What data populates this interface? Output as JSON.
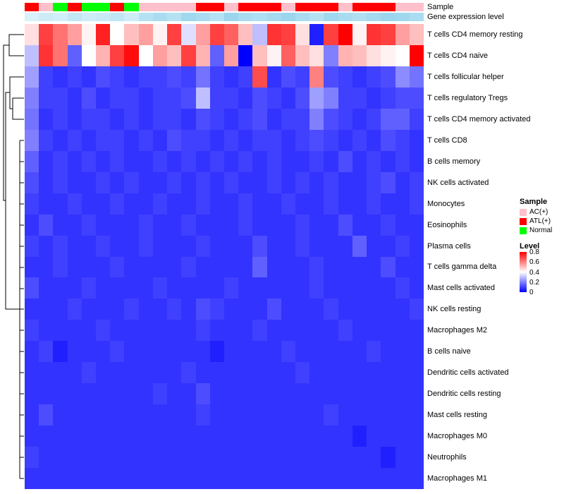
{
  "annotation": {
    "sample_label": "Sample",
    "expression_label": "Gene expression level"
  },
  "legend": {
    "sample_title": "Sample",
    "sample_items": [
      {
        "label": "AC(+)",
        "color": "#FFC0CB"
      },
      {
        "label": "ATL(+)",
        "color": "#FF0000"
      },
      {
        "label": "Normal",
        "color": "#00FF00"
      }
    ],
    "level_title": "Level",
    "level_ticks": [
      "0.8",
      "0.6",
      "0.4",
      "0.2",
      "0"
    ],
    "level_gradient_top": "#FF0000",
    "level_gradient_mid": "#FFFFFF",
    "level_gradient_bottom": "#0000FF"
  },
  "chart_data": {
    "type": "heatmap",
    "title": "",
    "columns": 28,
    "value_range": [
      0,
      0.8
    ],
    "colormap": {
      "low": "#0000FF",
      "mid": "#FFFFFF",
      "high": "#FF0000",
      "mid_value": 0.4
    },
    "legend_position": "right",
    "rows": [
      "T cells CD4 memory resting",
      "T cells CD4 naive",
      "T cells follicular helper",
      "T cells regulatory Tregs",
      "T cells CD4 memory activated",
      "T cells CD8",
      "B cells memory",
      "NK cells activated",
      "Monocytes",
      "Eosinophils",
      "Plasma cells",
      "T cells gamma delta",
      "Mast cells activated",
      "NK cells resting",
      "Macrophages M2",
      "B cells naive",
      "Dendritic cells activated",
      "Dendritic cells resting",
      "Mast cells resting",
      "Macrophages M0",
      "Neutrophils",
      "Macrophages M1"
    ],
    "sample_groups": [
      "ATL(+)",
      "AC(+)",
      "Normal",
      "ATL(+)",
      "Normal",
      "Normal",
      "ATL(+)",
      "Normal",
      "AC(+)",
      "AC(+)",
      "AC(+)",
      "AC(+)",
      "ATL(+)",
      "ATL(+)",
      "AC(+)",
      "ATL(+)",
      "ATL(+)",
      "ATL(+)",
      "AC(+)",
      "ATL(+)",
      "ATL(+)",
      "ATL(+)",
      "AC(+)",
      "ATL(+)",
      "ATL(+)",
      "ATL(+)",
      "AC(+)",
      "AC(+)"
    ],
    "expression_colors": [
      "#d8f1fa",
      "#cdecf8",
      "#d2eef9",
      "#c2e7f6",
      "#cdecf8",
      "#c8eaf7",
      "#bfe6f5",
      "#cdecf8",
      "#b5e2f3",
      "#aadcf1",
      "#b5e2f3",
      "#a0d8ef",
      "#aadcf1",
      "#b5e2f3",
      "#9bd5ee",
      "#aadcf1",
      "#b0dff2",
      "#a5daf0",
      "#9bd5ee",
      "#aadcf1",
      "#b5e2f3",
      "#a0d8ef",
      "#aadcf1",
      "#b0dff2",
      "#a5daf0",
      "#9bd5ee",
      "#a0d8ef",
      "#aadcf1"
    ],
    "matrix": [
      [
        0.45,
        0.7,
        0.62,
        0.55,
        0.42,
        0.75,
        0.4,
        0.5,
        0.55,
        0.42,
        0.7,
        0.35,
        0.55,
        0.7,
        0.65,
        0.5,
        0.3,
        0.72,
        0.7,
        0.45,
        0.05,
        0.7,
        0.8,
        0.42,
        0.72,
        0.7,
        0.55,
        0.5
      ],
      [
        0.3,
        0.72,
        0.62,
        0.15,
        0.4,
        0.52,
        0.7,
        0.78,
        0.4,
        0.55,
        0.5,
        0.7,
        0.52,
        0.15,
        0.55,
        0.0,
        0.5,
        0.42,
        0.65,
        0.5,
        0.45,
        0.2,
        0.52,
        0.5,
        0.45,
        0.42,
        0.4,
        0.8
      ],
      [
        0.25,
        0.1,
        0.08,
        0.1,
        0.08,
        0.12,
        0.1,
        0.08,
        0.1,
        0.1,
        0.12,
        0.1,
        0.18,
        0.1,
        0.08,
        0.1,
        0.68,
        0.08,
        0.12,
        0.1,
        0.6,
        0.12,
        0.1,
        0.08,
        0.1,
        0.12,
        0.22,
        0.18
      ],
      [
        0.2,
        0.1,
        0.1,
        0.08,
        0.12,
        0.08,
        0.1,
        0.1,
        0.08,
        0.1,
        0.1,
        0.12,
        0.3,
        0.1,
        0.1,
        0.08,
        0.12,
        0.1,
        0.08,
        0.12,
        0.25,
        0.2,
        0.1,
        0.1,
        0.08,
        0.1,
        0.12,
        0.12
      ],
      [
        0.18,
        0.08,
        0.1,
        0.08,
        0.1,
        0.1,
        0.08,
        0.1,
        0.08,
        0.1,
        0.1,
        0.08,
        0.12,
        0.1,
        0.08,
        0.1,
        0.12,
        0.08,
        0.1,
        0.1,
        0.2,
        0.12,
        0.1,
        0.08,
        0.1,
        0.15,
        0.15,
        0.1
      ],
      [
        0.2,
        0.1,
        0.08,
        0.1,
        0.08,
        0.1,
        0.1,
        0.08,
        0.1,
        0.08,
        0.12,
        0.1,
        0.1,
        0.08,
        0.1,
        0.08,
        0.1,
        0.1,
        0.08,
        0.1,
        0.12,
        0.1,
        0.08,
        0.1,
        0.08,
        0.12,
        0.1,
        0.08
      ],
      [
        0.15,
        0.08,
        0.1,
        0.08,
        0.1,
        0.08,
        0.1,
        0.08,
        0.08,
        0.1,
        0.08,
        0.1,
        0.08,
        0.1,
        0.08,
        0.1,
        0.08,
        0.1,
        0.08,
        0.08,
        0.1,
        0.08,
        0.12,
        0.08,
        0.1,
        0.08,
        0.1,
        0.08
      ],
      [
        0.12,
        0.08,
        0.1,
        0.08,
        0.08,
        0.1,
        0.08,
        0.1,
        0.08,
        0.08,
        0.1,
        0.08,
        0.1,
        0.08,
        0.1,
        0.08,
        0.08,
        0.1,
        0.08,
        0.1,
        0.08,
        0.1,
        0.08,
        0.08,
        0.1,
        0.12,
        0.08,
        0.1
      ],
      [
        0.1,
        0.08,
        0.08,
        0.1,
        0.08,
        0.08,
        0.1,
        0.08,
        0.08,
        0.1,
        0.08,
        0.08,
        0.1,
        0.08,
        0.08,
        0.1,
        0.08,
        0.08,
        0.1,
        0.08,
        0.08,
        0.1,
        0.08,
        0.08,
        0.1,
        0.08,
        0.08,
        0.1
      ],
      [
        0.08,
        0.12,
        0.08,
        0.08,
        0.1,
        0.08,
        0.08,
        0.08,
        0.1,
        0.08,
        0.08,
        0.1,
        0.08,
        0.08,
        0.08,
        0.1,
        0.08,
        0.08,
        0.08,
        0.1,
        0.08,
        0.08,
        0.12,
        0.08,
        0.08,
        0.1,
        0.08,
        0.08
      ],
      [
        0.1,
        0.08,
        0.1,
        0.08,
        0.08,
        0.1,
        0.08,
        0.08,
        0.1,
        0.08,
        0.08,
        0.08,
        0.1,
        0.08,
        0.08,
        0.08,
        0.12,
        0.08,
        0.08,
        0.1,
        0.08,
        0.08,
        0.08,
        0.15,
        0.08,
        0.08,
        0.1,
        0.08
      ],
      [
        0.08,
        0.08,
        0.1,
        0.08,
        0.08,
        0.08,
        0.1,
        0.08,
        0.08,
        0.08,
        0.08,
        0.1,
        0.08,
        0.08,
        0.08,
        0.08,
        0.15,
        0.08,
        0.08,
        0.08,
        0.1,
        0.08,
        0.08,
        0.08,
        0.08,
        0.12,
        0.08,
        0.08
      ],
      [
        0.12,
        0.08,
        0.08,
        0.08,
        0.1,
        0.08,
        0.08,
        0.08,
        0.08,
        0.1,
        0.08,
        0.08,
        0.08,
        0.08,
        0.1,
        0.08,
        0.08,
        0.08,
        0.08,
        0.08,
        0.1,
        0.08,
        0.08,
        0.08,
        0.08,
        0.08,
        0.1,
        0.08
      ],
      [
        0.08,
        0.08,
        0.08,
        0.1,
        0.08,
        0.08,
        0.08,
        0.1,
        0.08,
        0.08,
        0.1,
        0.08,
        0.12,
        0.1,
        0.08,
        0.08,
        0.08,
        0.12,
        0.08,
        0.08,
        0.08,
        0.1,
        0.08,
        0.08,
        0.08,
        0.08,
        0.08,
        0.1
      ],
      [
        0.1,
        0.08,
        0.08,
        0.08,
        0.08,
        0.1,
        0.08,
        0.08,
        0.08,
        0.08,
        0.08,
        0.08,
        0.1,
        0.08,
        0.08,
        0.08,
        0.1,
        0.08,
        0.08,
        0.08,
        0.08,
        0.08,
        0.1,
        0.08,
        0.08,
        0.08,
        0.08,
        0.08
      ],
      [
        0.08,
        0.1,
        0.05,
        0.08,
        0.08,
        0.08,
        0.1,
        0.08,
        0.08,
        0.08,
        0.08,
        0.08,
        0.08,
        0.05,
        0.08,
        0.08,
        0.08,
        0.08,
        0.1,
        0.08,
        0.08,
        0.08,
        0.08,
        0.08,
        0.1,
        0.08,
        0.08,
        0.08
      ],
      [
        0.08,
        0.08,
        0.08,
        0.08,
        0.1,
        0.08,
        0.08,
        0.08,
        0.08,
        0.08,
        0.08,
        0.1,
        0.08,
        0.08,
        0.08,
        0.08,
        0.08,
        0.08,
        0.08,
        0.1,
        0.08,
        0.08,
        0.08,
        0.08,
        0.08,
        0.08,
        0.08,
        0.08
      ],
      [
        0.08,
        0.08,
        0.08,
        0.08,
        0.08,
        0.08,
        0.08,
        0.08,
        0.08,
        0.1,
        0.08,
        0.08,
        0.12,
        0.08,
        0.08,
        0.08,
        0.08,
        0.08,
        0.08,
        0.08,
        0.08,
        0.08,
        0.08,
        0.08,
        0.08,
        0.08,
        0.08,
        0.08
      ],
      [
        0.08,
        0.12,
        0.08,
        0.08,
        0.08,
        0.08,
        0.08,
        0.08,
        0.08,
        0.08,
        0.08,
        0.08,
        0.1,
        0.08,
        0.08,
        0.08,
        0.08,
        0.08,
        0.08,
        0.08,
        0.08,
        0.1,
        0.08,
        0.08,
        0.08,
        0.08,
        0.08,
        0.08
      ],
      [
        0.08,
        0.08,
        0.08,
        0.08,
        0.08,
        0.08,
        0.08,
        0.08,
        0.08,
        0.08,
        0.08,
        0.08,
        0.08,
        0.08,
        0.08,
        0.08,
        0.08,
        0.08,
        0.08,
        0.08,
        0.08,
        0.08,
        0.08,
        0.05,
        0.08,
        0.08,
        0.08,
        0.08
      ],
      [
        0.1,
        0.08,
        0.08,
        0.08,
        0.08,
        0.08,
        0.08,
        0.08,
        0.08,
        0.08,
        0.08,
        0.08,
        0.08,
        0.08,
        0.08,
        0.08,
        0.08,
        0.08,
        0.08,
        0.08,
        0.08,
        0.08,
        0.08,
        0.08,
        0.08,
        0.05,
        0.08,
        0.08
      ],
      [
        0.08,
        0.08,
        0.08,
        0.08,
        0.08,
        0.08,
        0.08,
        0.08,
        0.08,
        0.08,
        0.08,
        0.08,
        0.08,
        0.08,
        0.08,
        0.08,
        0.08,
        0.08,
        0.08,
        0.08,
        0.08,
        0.08,
        0.08,
        0.08,
        0.08,
        0.08,
        0.08,
        0.08
      ]
    ]
  }
}
